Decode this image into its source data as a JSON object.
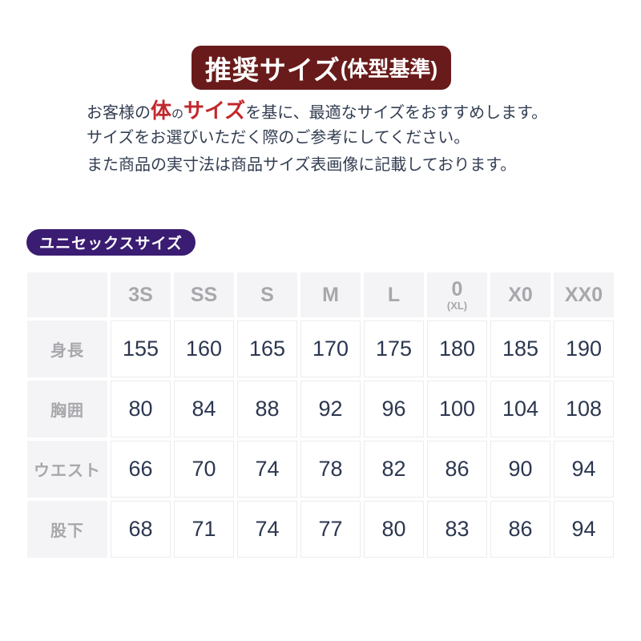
{
  "page": {
    "background": "#ffffff"
  },
  "banner": {
    "text_main": "推奨サイズ",
    "text_sub": "(体型基準)",
    "bg_color": "#691b1b",
    "text_color": "#ffffff"
  },
  "intro": {
    "line1": {
      "pre": "お客様の",
      "em1": "体",
      "mid": "の",
      "em2": "サイズ",
      "post": "を基に、最適なサイズをおすすめします。"
    },
    "line2": "サイズをお選びいただく際のご参考にしてください。",
    "line3": "また商品の実寸法は商品サイズ表画像に記載しております。",
    "text_color": "#333e52",
    "accent_color": "#c2282d"
  },
  "badge": {
    "label": "ユニセックスサイズ",
    "bg_color": "#3a1c72",
    "text_color": "#ffffff"
  },
  "size_table": {
    "header_bg": "#f4f4f6",
    "header_text_color": "#a7a7ac",
    "cell_text_color": "#2c3750",
    "cell_border_color": "#ececef",
    "header": [
      {
        "label": "3S",
        "sub": ""
      },
      {
        "label": "SS",
        "sub": ""
      },
      {
        "label": "S",
        "sub": ""
      },
      {
        "label": "M",
        "sub": ""
      },
      {
        "label": "L",
        "sub": ""
      },
      {
        "label": "0",
        "sub": "(XL)"
      },
      {
        "label": "X0",
        "sub": ""
      },
      {
        "label": "XX0",
        "sub": ""
      }
    ],
    "rows": [
      {
        "label": "身長",
        "values": [
          "155",
          "160",
          "165",
          "170",
          "175",
          "180",
          "185",
          "190"
        ]
      },
      {
        "label": "胸囲",
        "values": [
          "80",
          "84",
          "88",
          "92",
          "96",
          "100",
          "104",
          "108"
        ]
      },
      {
        "label": "ウエスト",
        "values": [
          "66",
          "70",
          "74",
          "78",
          "82",
          "86",
          "90",
          "94"
        ]
      },
      {
        "label": "股下",
        "values": [
          "68",
          "71",
          "74",
          "77",
          "80",
          "83",
          "86",
          "94"
        ]
      }
    ]
  }
}
